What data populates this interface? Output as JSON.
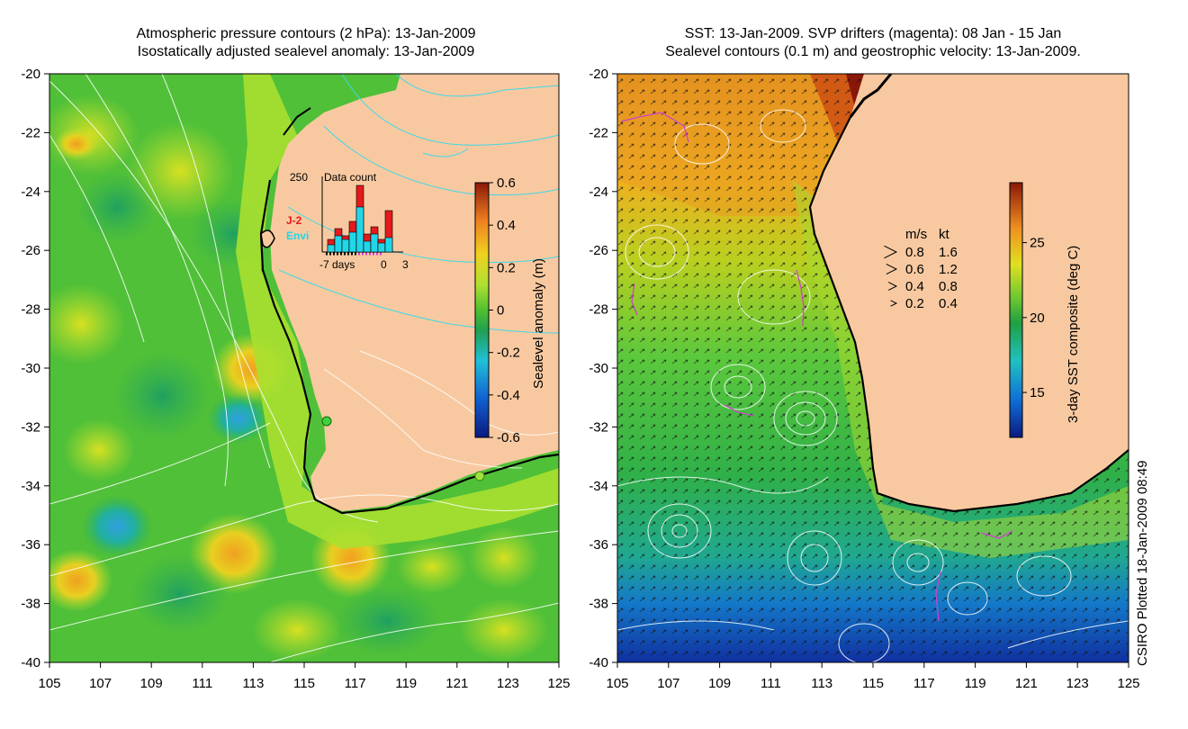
{
  "left_panel": {
    "title_line1": "Atmospheric pressure contours (2 hPa): 13-Jan-2009",
    "title_line2": "Isostatically adjusted sealevel anomaly: 13-Jan-2009",
    "colorbar": {
      "label": "Sealevel anomaly (m)",
      "ticks": [
        "0.6",
        "0.4",
        "0.2",
        "0",
        "-0.2",
        "-0.4",
        "-0.6"
      ],
      "range": [
        -0.6,
        0.6
      ]
    },
    "inset": {
      "title": "Data count",
      "ymax_label": "250",
      "series_j2_label": "J-2",
      "series_envi_label": "Envi",
      "x_labels": [
        "-7 days",
        "0",
        "3"
      ],
      "j2_color": "#e41a1c",
      "envi_color": "#22d6e8"
    }
  },
  "right_panel": {
    "title_line1": "SST: 13-Jan-2009. SVP drifters (magenta): 08 Jan - 15 Jan",
    "title_line2": "Sealevel contours (0.1 m) and geostrophic velocity: 13-Jan-2009.",
    "colorbar": {
      "label": "3-day SST composite (deg C)",
      "ticks": [
        "25",
        "20",
        "15"
      ],
      "range": [
        12,
        29
      ]
    },
    "velocity_legend": {
      "header_ms": "m/s",
      "header_kt": "kt",
      "rows": [
        {
          "ms": "0.8",
          "kt": "1.6"
        },
        {
          "ms": "0.6",
          "kt": "1.2"
        },
        {
          "ms": "0.4",
          "kt": "0.8"
        },
        {
          "ms": "0.2",
          "kt": "0.4"
        }
      ]
    }
  },
  "axes": {
    "x_ticks": [
      "105",
      "107",
      "109",
      "111",
      "113",
      "115",
      "117",
      "119",
      "121",
      "123",
      "125"
    ],
    "y_ticks": [
      "-20",
      "-22",
      "-24",
      "-26",
      "-28",
      "-30",
      "-32",
      "-34",
      "-36",
      "-38",
      "-40"
    ]
  },
  "credit": "CSIRO Plotted 18-Jan-2009 08:49",
  "colors": {
    "land": "#f8c9a0",
    "ocean_base": "#3cc83c",
    "contour_cyan": "#3fd8e8",
    "drifter_magenta": "#d040d0"
  }
}
